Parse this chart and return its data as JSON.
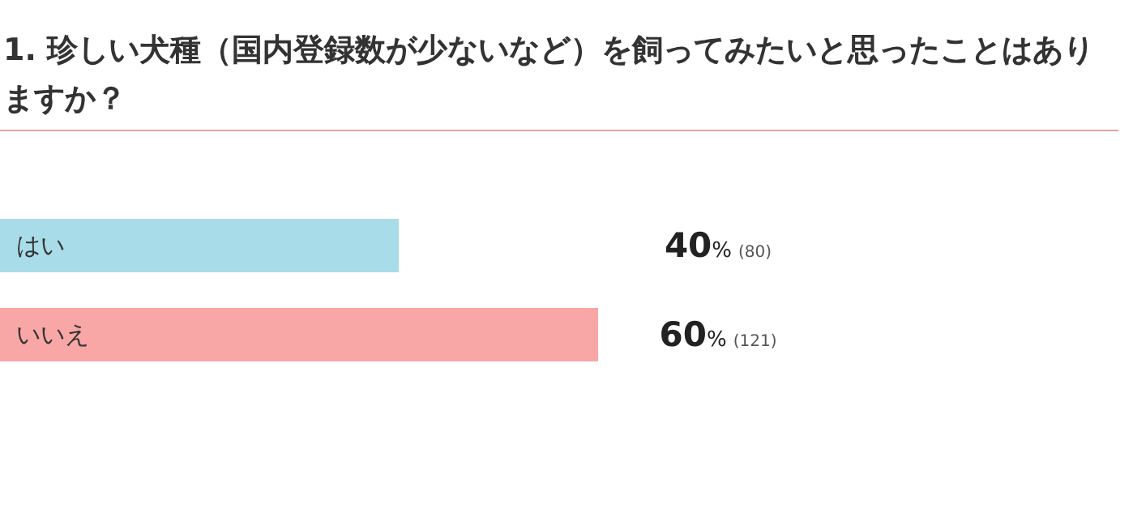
{
  "chart_data": {
    "type": "bar",
    "orientation": "horizontal",
    "title": "1. 珍しい犬種（国内登録数が少ないなど）を飼ってみたいと思ったことはありますか？",
    "categories": [
      "はい",
      "いいえ"
    ],
    "values": [
      40,
      60
    ],
    "colors": [
      "#a8dce8",
      "#f8a6a6"
    ],
    "value_labels": [
      "40% (80)",
      "60% (121)"
    ]
  }
}
